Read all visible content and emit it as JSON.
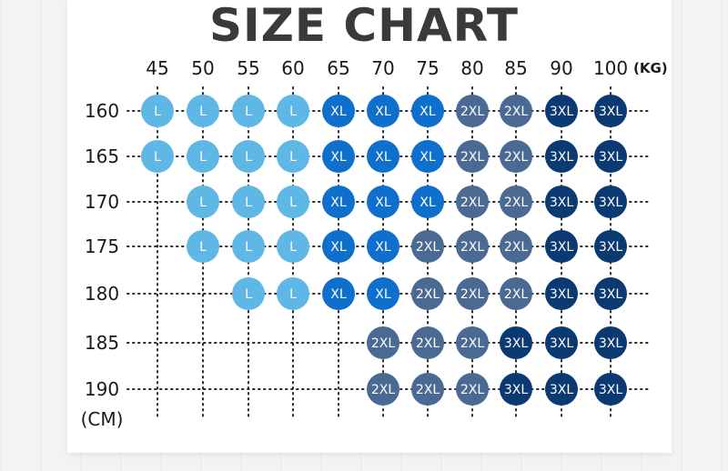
{
  "title": "SIZE CHART",
  "chart_data": {
    "type": "table",
    "title": "SIZE CHART",
    "x_unit": "(KG)",
    "y_unit": "(CM)",
    "weights": [
      "45",
      "50",
      "55",
      "60",
      "65",
      "70",
      "75",
      "80",
      "85",
      "90",
      "100"
    ],
    "heights": [
      "160",
      "165",
      "170",
      "175",
      "180",
      "185",
      "190"
    ],
    "cells": [
      [
        "L",
        "L",
        "L",
        "L",
        "XL",
        "XL",
        "XL",
        "2XL",
        "2XL",
        "3XL",
        "3XL"
      ],
      [
        "L",
        "L",
        "L",
        "L",
        "XL",
        "XL",
        "XL",
        "2XL",
        "2XL",
        "3XL",
        "3XL"
      ],
      [
        "",
        "L",
        "L",
        "L",
        "XL",
        "XL",
        "XL",
        "2XL",
        "2XL",
        "3XL",
        "3XL"
      ],
      [
        "",
        "L",
        "L",
        "L",
        "XL",
        "XL",
        "2XL",
        "2XL",
        "2XL",
        "3XL",
        "3XL"
      ],
      [
        "",
        "",
        "L",
        "L",
        "XL",
        "XL",
        "2XL",
        "2XL",
        "2XL",
        "3XL",
        "3XL"
      ],
      [
        "",
        "",
        "",
        "",
        "",
        "2XL",
        "2XL",
        "2XL",
        "3XL",
        "3XL",
        "3XL"
      ],
      [
        "",
        "",
        "",
        "",
        "",
        "2XL",
        "2XL",
        "2XL",
        "3XL",
        "3XL",
        "3XL"
      ]
    ],
    "size_colors": {
      "L": "#5fb7e6",
      "XL": "#0f6fcc",
      "2XL": "#4a6a94",
      "3XL": "#0b3a72"
    },
    "grid": "dotted"
  }
}
